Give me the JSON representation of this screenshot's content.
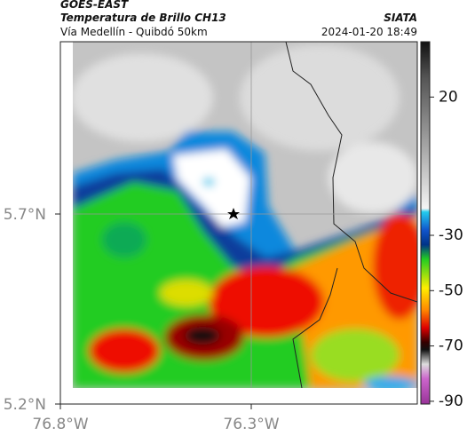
{
  "header": {
    "satellite": "GOES-EAST",
    "title": "Temperatura de Brillo CH13",
    "subtitle": "Vía Medellín - Quibdó 50km",
    "source": "SIATA",
    "timestamp": "2024-01-20 18:49"
  },
  "map": {
    "lat_labels": [
      "5.7°N",
      "5.2°N"
    ],
    "lon_labels": [
      "76.8°W",
      "76.3°W"
    ]
  },
  "colorbar": {
    "range": [
      -91,
      40
    ],
    "ticks": [
      20,
      -30,
      -50,
      -70,
      -90
    ]
  }
}
